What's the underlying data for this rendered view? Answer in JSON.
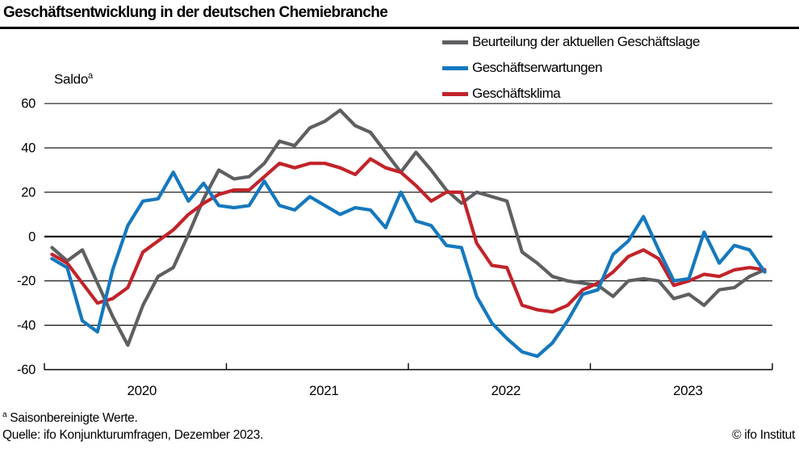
{
  "header": {
    "title": "Geschäftsentwicklung in der deutschen Chemiebranche"
  },
  "y_axis_label": {
    "text": "Saldo",
    "sup": "a"
  },
  "legend": [
    {
      "label": "Beurteilung der aktuellen Geschäftslage",
      "color": "#5e5f61"
    },
    {
      "label": "Geschäftserwartungen",
      "color": "#1578be"
    },
    {
      "label": "Geschäftsklima",
      "color": "#c2232a"
    }
  ],
  "footer": {
    "footnote_sup": "a",
    "footnote_text": " Saisonbereinigte Werte.",
    "source": "Quelle: ifo Konjunkturumfragen, Dezember 2023.",
    "copyright": "© ifo Institut"
  },
  "chart_data": {
    "type": "line",
    "title": "Geschäftsentwicklung in der deutschen Chemiebranche",
    "ylabel": "Saldo (saisonbereinigt)",
    "x_start": "2020-01",
    "x_end": "2023-12",
    "frequency": "monthly",
    "x_tick_labels": [
      "2020",
      "2021",
      "2022",
      "2023"
    ],
    "y_ticks": [
      60,
      40,
      20,
      0,
      -20,
      -40,
      -60
    ],
    "ylim": [
      -60,
      65
    ],
    "grid": "horizontal",
    "legend_position": "top-right",
    "series": [
      {
        "name": "Beurteilung der aktuellen Geschäftslage",
        "color": "#5e5f61",
        "values": [
          -5,
          -11,
          -6,
          -21,
          -36,
          -49,
          -31,
          -18,
          -14,
          1,
          17,
          30,
          26,
          27,
          33,
          43,
          41,
          49,
          52,
          57,
          50,
          47,
          38,
          29,
          38,
          30,
          21,
          15,
          20,
          18,
          16,
          -7,
          -12,
          -18,
          -20,
          -21,
          -22,
          -27,
          -20,
          -19,
          -20,
          -28,
          -26,
          -31,
          -24,
          -23,
          -18,
          -15
        ]
      },
      {
        "name": "Geschäftserwartungen",
        "color": "#1578be",
        "values": [
          -10,
          -14,
          -38,
          -43,
          -15,
          5,
          16,
          17,
          29,
          16,
          24,
          14,
          13,
          14,
          25,
          14,
          12,
          18,
          14,
          10,
          13,
          12,
          4,
          20,
          7,
          5,
          -4,
          -5,
          -27,
          -39,
          -46,
          -52,
          -54,
          -48,
          -38,
          -26,
          -24,
          -8,
          -2,
          9,
          -6,
          -20,
          -19,
          2,
          -12,
          -4,
          -6,
          -16
        ]
      },
      {
        "name": "Geschäftsklima",
        "color": "#c2232a",
        "values": [
          -8,
          -12,
          -21,
          -30,
          -28,
          -23,
          -7,
          -2,
          3,
          10,
          15,
          19,
          21,
          21,
          27,
          33,
          31,
          33,
          33,
          31,
          28,
          35,
          31,
          29,
          23,
          16,
          20,
          20,
          -3,
          -13,
          -14,
          -31,
          -33,
          -34,
          -31,
          -24,
          -21,
          -16,
          -9,
          -6,
          -10,
          -22,
          -20,
          -17,
          -18,
          -15,
          -14,
          -15
        ]
      }
    ]
  }
}
